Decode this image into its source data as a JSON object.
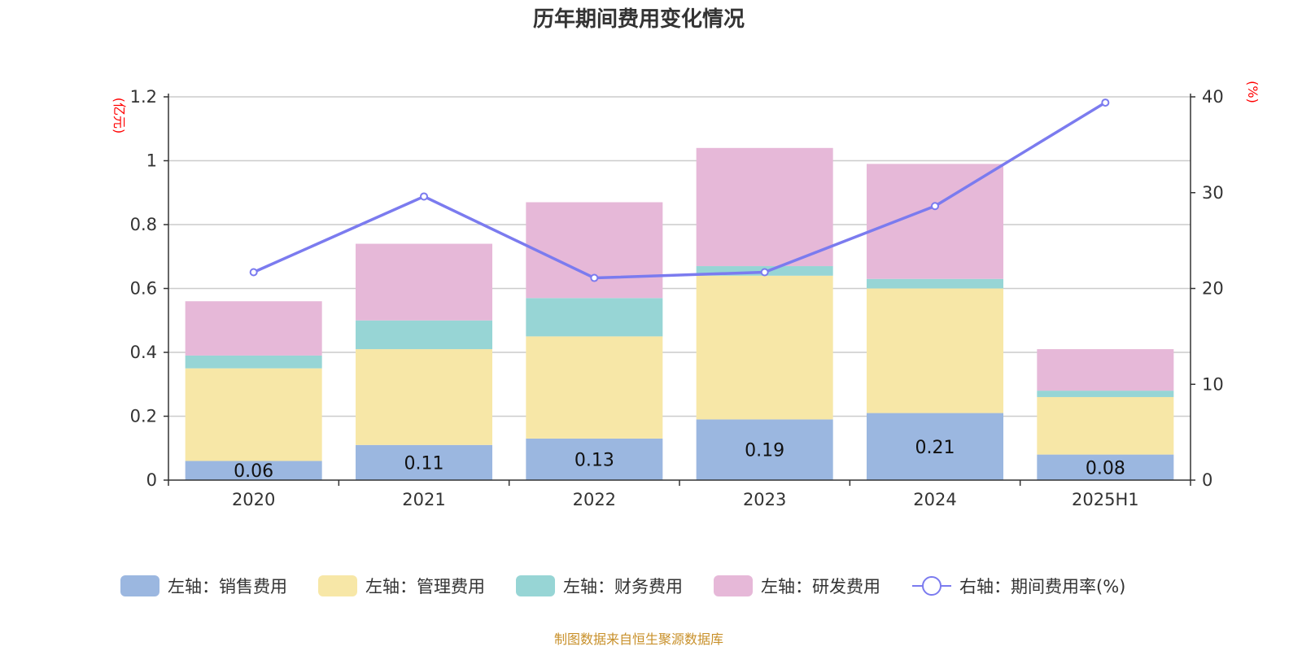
{
  "chart_data": {
    "type": "bar",
    "stacked": true,
    "title": "历年期间费用变化情况",
    "categories": [
      "2020",
      "2021",
      "2022",
      "2023",
      "2024",
      "2025H1"
    ],
    "y_left": {
      "unit": "(亿元)",
      "ylim": [
        0,
        1.2
      ],
      "ticks": [
        "0",
        "0.2",
        "0.4",
        "0.6",
        "0.8",
        "1",
        "1.2"
      ]
    },
    "y_right": {
      "unit": "(%)",
      "ylim": [
        0,
        40
      ],
      "ticks": [
        "0",
        "10",
        "20",
        "30",
        "40"
      ]
    },
    "grid": true,
    "legend_position": "bottom",
    "series": [
      {
        "name": "左轴：销售费用",
        "type": "bar",
        "axis": "left",
        "color": "#9bb7e0",
        "values": [
          0.06,
          0.11,
          0.13,
          0.19,
          0.21,
          0.08
        ],
        "labels": [
          "0.06",
          "0.11",
          "0.13",
          "0.19",
          "0.21",
          "0.08"
        ]
      },
      {
        "name": "左轴：管理费用",
        "type": "bar",
        "axis": "left",
        "color": "#f7e7a7",
        "values": [
          0.29,
          0.3,
          0.32,
          0.45,
          0.39,
          0.18
        ]
      },
      {
        "name": "左轴：财务费用",
        "type": "bar",
        "axis": "left",
        "color": "#97d5d5",
        "values": [
          0.04,
          0.09,
          0.12,
          0.03,
          0.03,
          0.02
        ]
      },
      {
        "name": "左轴：研发费用",
        "type": "bar",
        "axis": "left",
        "color": "#e6b8d8",
        "values": [
          0.17,
          0.24,
          0.3,
          0.37,
          0.36,
          0.13
        ]
      },
      {
        "name": "右轴：期间费用率(%)",
        "type": "line",
        "axis": "right",
        "color": "#7b7bef",
        "values": [
          21.7,
          29.6,
          21.1,
          21.7,
          28.6,
          39.4
        ]
      }
    ]
  },
  "source": "制图数据来自恒生聚源数据库"
}
